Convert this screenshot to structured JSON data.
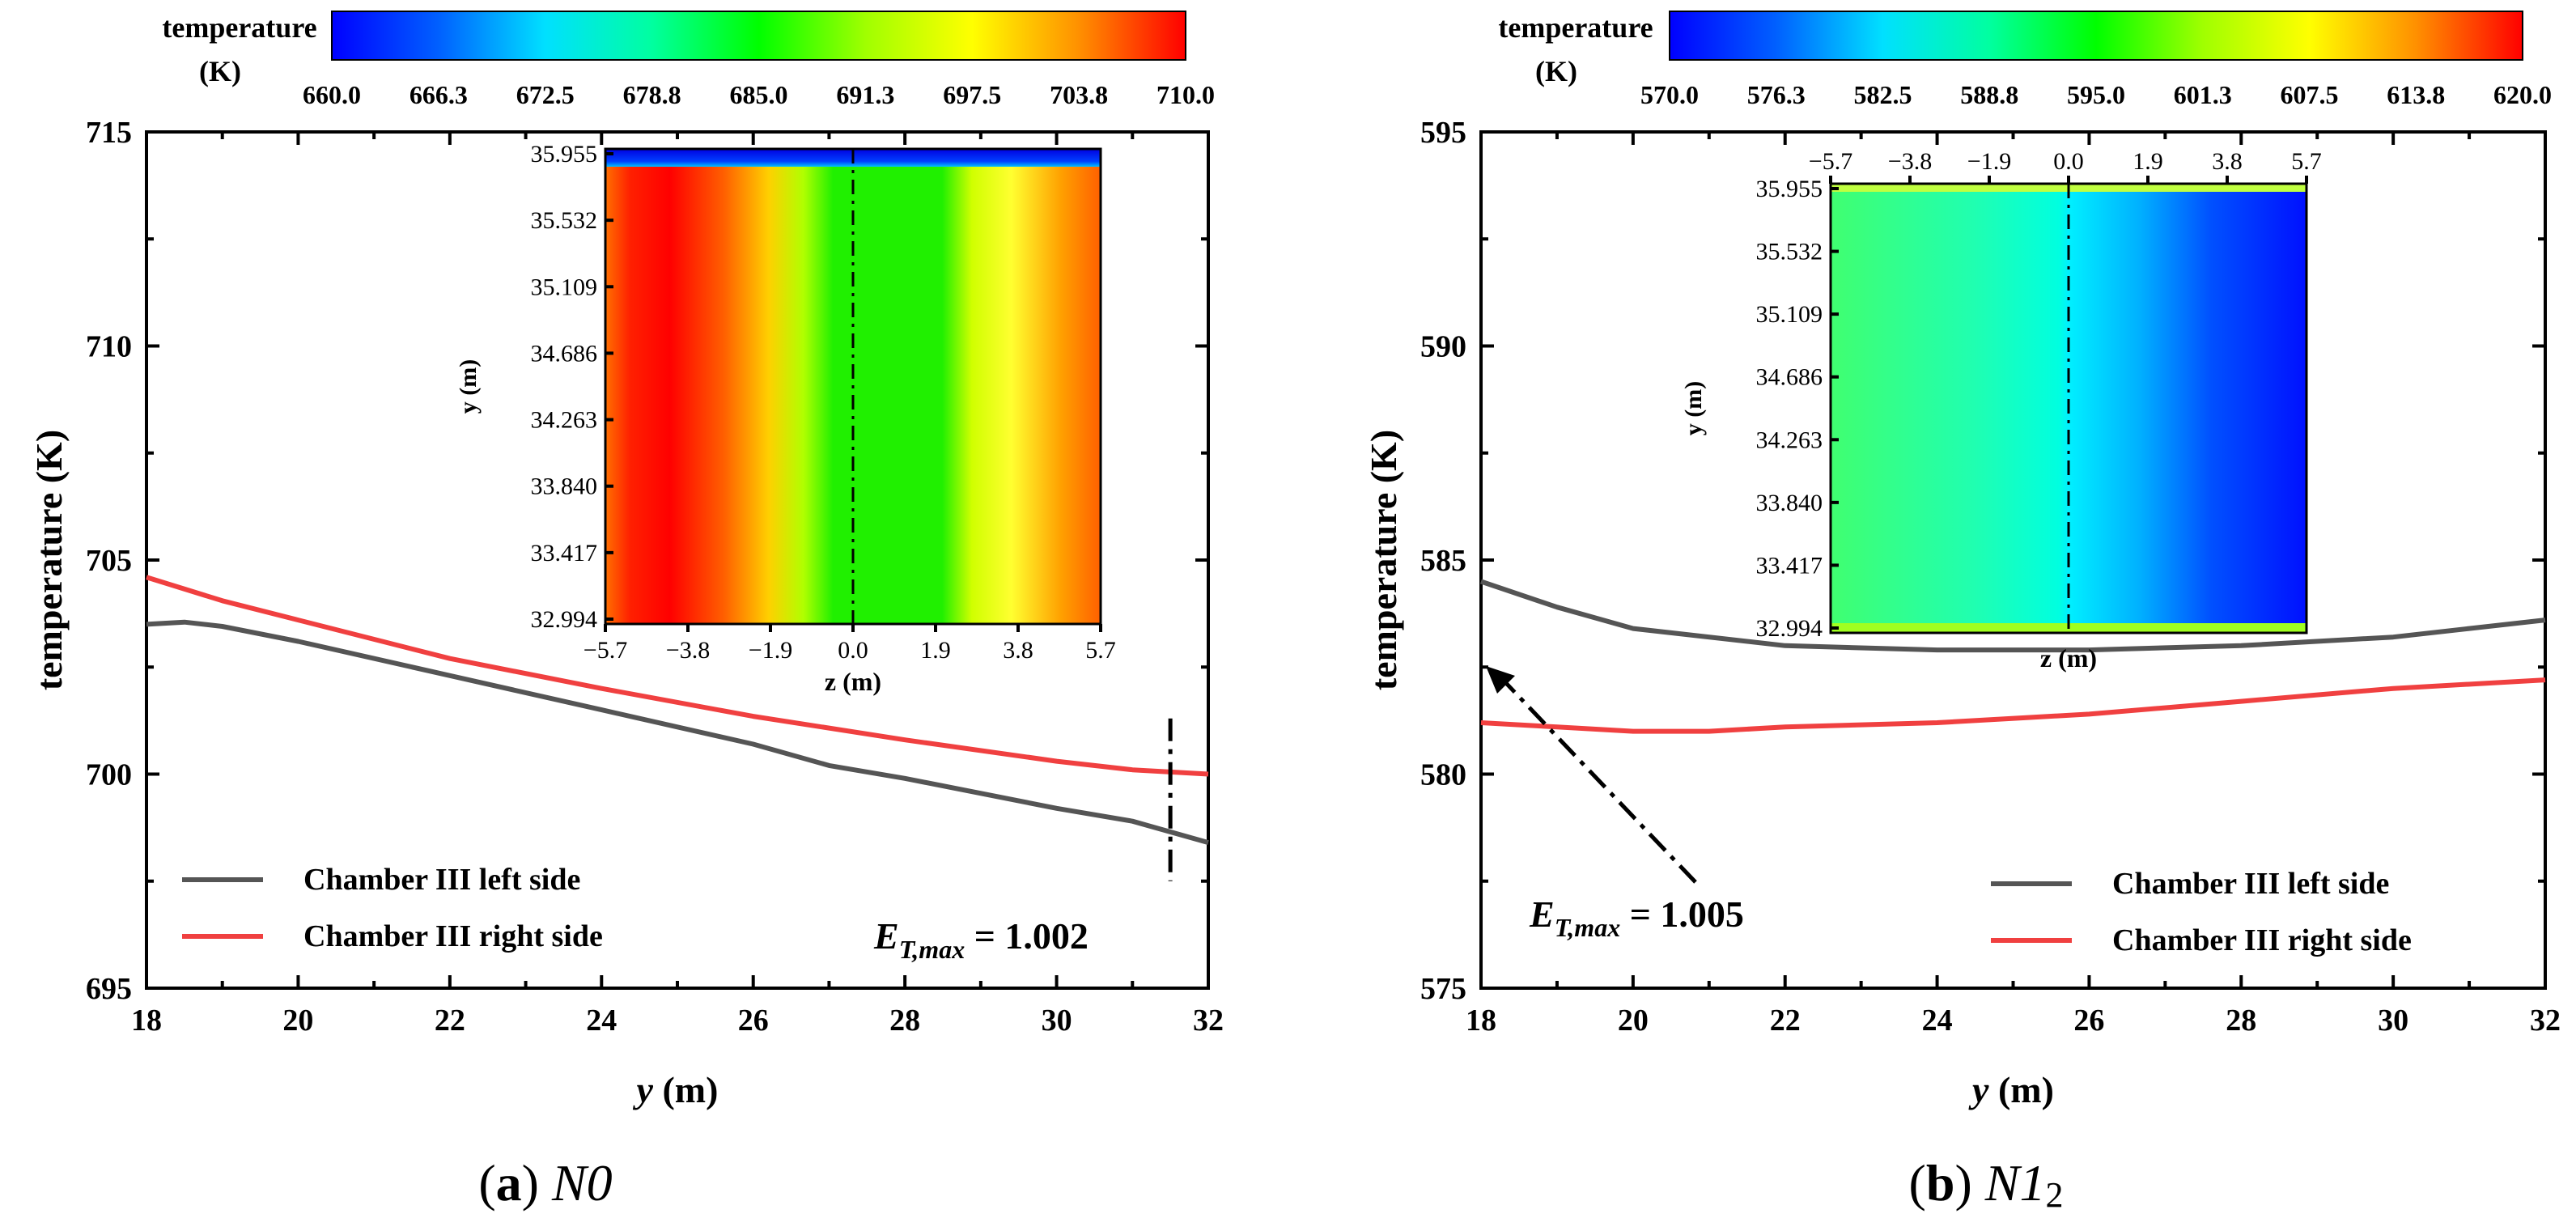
{
  "chart_data": [
    {
      "type": "line",
      "panel_label": "(a)",
      "caption_letter": "a",
      "caption_name": "N0",
      "xlabel": "y",
      "xunit": "(m)",
      "ylabel": "temperature",
      "yunit": "(K)",
      "xlim": [
        18,
        32
      ],
      "ylim": [
        695,
        715
      ],
      "xticks": [
        "18",
        "20",
        "22",
        "24",
        "26",
        "28",
        "30",
        "32"
      ],
      "yticks": [
        "695",
        "700",
        "705",
        "710",
        "715"
      ],
      "series": [
        {
          "name": "Chamber III left side",
          "color": "#555555",
          "x": [
            18,
            18.5,
            19,
            20,
            22,
            24,
            26,
            27,
            28,
            30,
            31,
            32
          ],
          "y": [
            703.5,
            703.55,
            703.45,
            703.1,
            702.3,
            701.5,
            700.7,
            700.2,
            699.9,
            699.2,
            698.9,
            698.4
          ]
        },
        {
          "name": "Chamber III right side",
          "color": "#f04040",
          "x": [
            18,
            19,
            20,
            22,
            24,
            26,
            28,
            30,
            31,
            32
          ],
          "y": [
            704.6,
            704.05,
            703.6,
            702.7,
            702.0,
            701.35,
            700.8,
            700.3,
            700.1,
            700.0
          ]
        }
      ],
      "annotation": {
        "text_main": "E",
        "text_sub": "T,max",
        "text_rest": " = 1.002",
        "marker_x": 31.5
      },
      "colorbar": {
        "title_line1": "temperature",
        "title_line2": "(K)",
        "ticks": [
          "660.0",
          "666.3",
          "672.5",
          "678.8",
          "685.0",
          "691.3",
          "697.5",
          "703.8",
          "710.0"
        ],
        "colors": [
          "#0000ff",
          "#00a0ff",
          "#00ffff",
          "#00ff80",
          "#00ff00",
          "#c0ff00",
          "#ffff00",
          "#ff8000",
          "#ff0000"
        ]
      },
      "inset": {
        "xlabel": "z (m)",
        "ylabel": "y (m)",
        "xticks": [
          "−5.7",
          "−3.8",
          "−1.9",
          "0.0",
          "1.9",
          "3.8",
          "5.7"
        ],
        "yticks": [
          "35.955",
          "35.532",
          "35.109",
          "34.686",
          "34.263",
          "33.840",
          "33.417",
          "32.994"
        ],
        "xticks_position": "bottom",
        "description_fill": "red-left-green-center-orange-right"
      }
    },
    {
      "type": "line",
      "panel_label": "(b)",
      "caption_letter": "b",
      "caption_name": "N1",
      "caption_sub": "2",
      "xlabel": "y",
      "xunit": "(m)",
      "ylabel": "temperature",
      "yunit": "(K)",
      "xlim": [
        18,
        32
      ],
      "ylim": [
        575,
        595
      ],
      "xticks": [
        "18",
        "20",
        "22",
        "24",
        "26",
        "28",
        "30",
        "32"
      ],
      "yticks": [
        "575",
        "580",
        "585",
        "590",
        "595"
      ],
      "series": [
        {
          "name": "Chamber III left side",
          "color": "#555555",
          "x": [
            18,
            19,
            20,
            22,
            24,
            26,
            28,
            30,
            31,
            32
          ],
          "y": [
            584.5,
            583.9,
            583.4,
            583.0,
            582.9,
            582.9,
            583.0,
            583.2,
            583.4,
            583.6
          ]
        },
        {
          "name": "Chamber III right side",
          "color": "#f04040",
          "x": [
            18,
            19,
            20,
            21,
            22,
            24,
            26,
            28,
            30,
            32
          ],
          "y": [
            581.2,
            581.1,
            581.0,
            581.0,
            581.1,
            581.2,
            581.4,
            581.7,
            582.0,
            582.2
          ]
        }
      ],
      "annotation": {
        "text_main": "E",
        "text_sub": "T,max",
        "text_rest": " = 1.005",
        "arrow_to_x": 18,
        "arrow_to_y": 582.6
      },
      "colorbar": {
        "title_line1": "temperature",
        "title_line2": "(K)",
        "ticks": [
          "570.0",
          "576.3",
          "582.5",
          "588.8",
          "595.0",
          "601.3",
          "607.5",
          "613.8",
          "620.0"
        ],
        "colors": [
          "#0000ff",
          "#00a0ff",
          "#00ffff",
          "#00ff80",
          "#00ff00",
          "#c0ff00",
          "#ffff00",
          "#ff8000",
          "#ff0000"
        ]
      },
      "inset": {
        "xlabel": "z (m)",
        "ylabel": "y (m)",
        "xticks": [
          "−5.7",
          "−3.8",
          "−1.9",
          "0.0",
          "1.9",
          "3.8",
          "5.7"
        ],
        "yticks": [
          "35.955",
          "35.532",
          "35.109",
          "34.686",
          "34.263",
          "33.840",
          "33.417",
          "32.994"
        ],
        "xticks_position": "top",
        "description_fill": "green-left-cyan-center-blue-right"
      }
    }
  ]
}
